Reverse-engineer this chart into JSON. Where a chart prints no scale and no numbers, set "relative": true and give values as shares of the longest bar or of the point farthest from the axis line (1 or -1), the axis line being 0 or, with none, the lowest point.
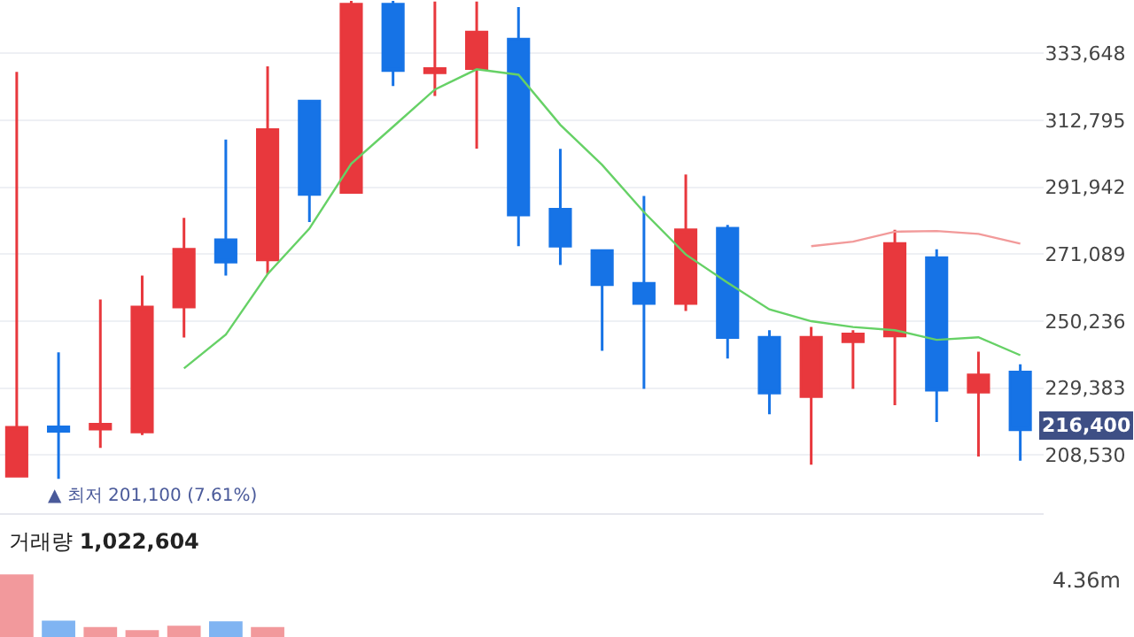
{
  "chart_data": [
    {
      "type": "candlestick",
      "categories": [
        null,
        null,
        null,
        null,
        null,
        null,
        null,
        null,
        null,
        null,
        null,
        null,
        null,
        null,
        null,
        null,
        null,
        null,
        null,
        null,
        null,
        null,
        null,
        null,
        null
      ],
      "ohlc": [
        [
          201900,
          327900,
          201900,
          217100
        ],
        [
          217300,
          240500,
          201100,
          215900
        ],
        [
          216600,
          257000,
          210700,
          218100
        ],
        [
          215700,
          264400,
          214700,
          254600
        ],
        [
          254600,
          282400,
          245100,
          272600
        ],
        [
          275600,
          306800,
          264400,
          268600
        ],
        [
          269300,
          329600,
          264900,
          309900
        ],
        [
          318800,
          318800,
          281100,
          289700
        ],
        [
          290300,
          350000,
          290300,
          349000
        ],
        [
          349000,
          350000,
          323500,
          328300
        ],
        [
          327600,
          349800,
          320400,
          328900
        ],
        [
          328900,
          349800,
          304000,
          340300
        ],
        [
          338100,
          348100,
          273600,
          283300
        ],
        [
          285100,
          303900,
          267700,
          273600
        ],
        [
          272200,
          272200,
          241000,
          261600
        ],
        [
          262000,
          289200,
          229100,
          255700
        ],
        [
          255700,
          295900,
          253400,
          278700
        ],
        [
          279200,
          280200,
          238600,
          245100
        ],
        [
          245200,
          247400,
          221200,
          227800
        ],
        [
          226700,
          248400,
          205500,
          245200
        ],
        [
          243800,
          247400,
          229100,
          246200
        ],
        [
          245600,
          278700,
          224000,
          274400
        ],
        [
          270000,
          272600,
          218800,
          228700
        ],
        [
          228100,
          240700,
          208000,
          233500
        ],
        [
          234400,
          236800,
          206700,
          216400
        ]
      ],
      "colors": [
        "#e8383d",
        "#1673e6",
        "#e8383d",
        "#e8383d",
        "#e8383d",
        "#1673e6",
        "#e8383d",
        "#1673e6",
        "#e8383d",
        "#1673e6",
        "#e8383d",
        "#e8383d",
        "#1673e6",
        "#1673e6",
        "#1673e6",
        "#1673e6",
        "#e8383d",
        "#1673e6",
        "#1673e6",
        "#e8383d",
        "#e8383d",
        "#e8383d",
        "#1673e6",
        "#e8383d",
        "#1673e6"
      ],
      "series": [
        {
          "type": "line",
          "color": "#66d166",
          "values": [
            null,
            null,
            null,
            null,
            235500,
            246000,
            264900,
            279100,
            299300,
            310800,
            322400,
            328700,
            327000,
            311400,
            298900,
            284200,
            271000,
            262200,
            253900,
            250200,
            248400,
            247400,
            244400,
            245200,
            239600
          ]
        },
        {
          "type": "line",
          "color": "#f29a9a",
          "values": [
            null,
            null,
            null,
            null,
            null,
            null,
            null,
            null,
            null,
            null,
            null,
            null,
            null,
            null,
            null,
            null,
            null,
            null,
            null,
            273600,
            275000,
            278100,
            278300,
            277400,
            274400
          ]
        }
      ],
      "ylim": [
        190500,
        350300
      ],
      "yticks": [
        {
          "value": 208530,
          "label": "208,530"
        },
        {
          "value": 229383,
          "label": "229,383"
        },
        {
          "value": 250236,
          "label": "250,236"
        },
        {
          "value": 271089,
          "label": "271,089"
        },
        {
          "value": 291942,
          "label": "291,942"
        },
        {
          "value": 312795,
          "label": "312,795"
        },
        {
          "value": 333648,
          "label": "333,648"
        }
      ],
      "grid": "y",
      "tick_labels": "y",
      "annotations": [
        "▲ 최저 201,100 (7.61%)",
        "216,400"
      ]
    },
    {
      "type": "bar",
      "relative": true,
      "categories": [
        null,
        null,
        null,
        null,
        null,
        null,
        null,
        null,
        null,
        null,
        null,
        null,
        null,
        null,
        null,
        null,
        null,
        null,
        null,
        null,
        null,
        null,
        null,
        null,
        null
      ],
      "values": [
        1,
        0.26,
        0.16,
        0.11,
        0.18,
        0.25,
        0.16,
        null,
        null,
        null,
        null,
        null,
        null,
        null,
        null,
        null,
        null,
        null,
        null,
        null,
        null,
        null,
        null,
        null,
        null
      ],
      "colors": [
        "#f2999c",
        "#80b4f2",
        "#f2999c",
        "#f2999c",
        "#f2999c",
        "#80b4f2",
        "#f2999c",
        null,
        null,
        null,
        null,
        null,
        null,
        null,
        null,
        null,
        null,
        null,
        null,
        null,
        null,
        null,
        null,
        null,
        null
      ],
      "annotations": [
        "거래량 1,022,604",
        "4.36m"
      ]
    }
  ]
}
